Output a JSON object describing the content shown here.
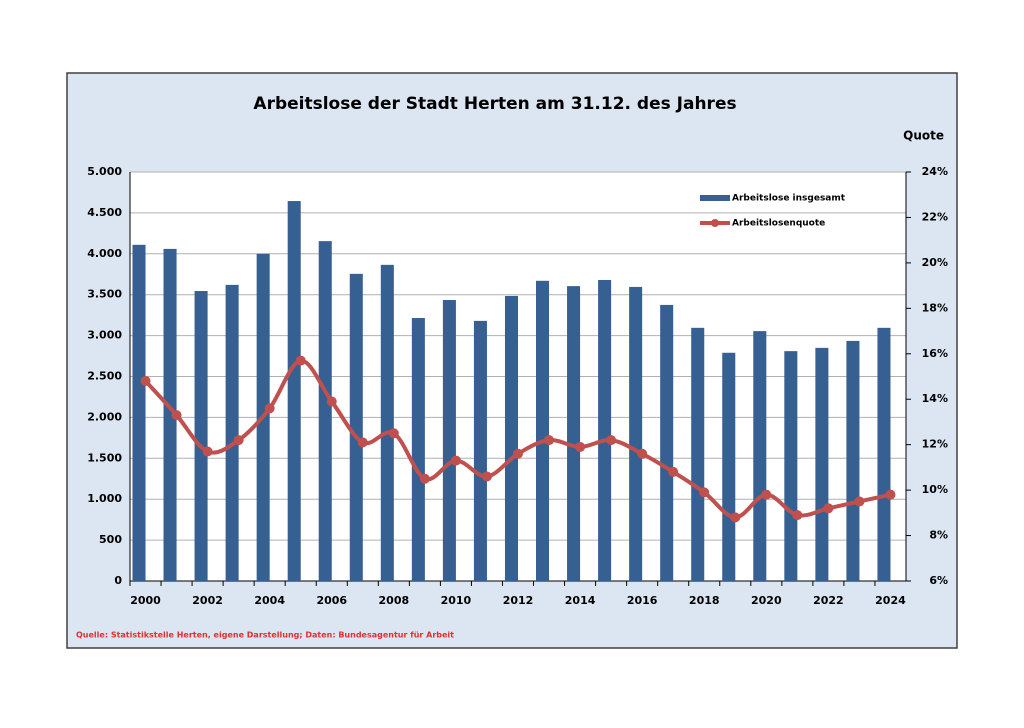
{
  "chart_data": {
    "type": "bar_line",
    "title": "Arbeitslose der Stadt Herten am 31.12. des Jahres",
    "y2_label": "Quote",
    "source": "Quelle: Statistikstelle Herten, eigene Darstellung; Daten: Bundesagentur für Arbeit",
    "categories": [
      "2000",
      null,
      "2002",
      null,
      "2004",
      null,
      "2006",
      null,
      "2008",
      null,
      "2010",
      null,
      "2012",
      null,
      "2014",
      null,
      "2016",
      null,
      "2018",
      null,
      "2020",
      null,
      "2022",
      null,
      "2024"
    ],
    "series": [
      {
        "name": "Arbeitslose insgesamt",
        "type": "bar",
        "color": "#376092",
        "values": [
          4110,
          4060,
          3545,
          3620,
          4000,
          4645,
          4155,
          3755,
          3865,
          3215,
          3435,
          3180,
          3485,
          3670,
          3605,
          3680,
          3595,
          3375,
          3095,
          2790,
          3055,
          2810,
          2850,
          2935,
          3095
        ]
      },
      {
        "name": "Arbeitslosenquote",
        "type": "line",
        "axis": "y2",
        "color": "#c0504d",
        "values": [
          14.8,
          13.3,
          11.7,
          12.2,
          13.6,
          15.7,
          13.9,
          12.1,
          12.5,
          10.5,
          11.3,
          10.6,
          11.6,
          12.2,
          11.9,
          12.2,
          11.6,
          10.8,
          9.9,
          8.8,
          9.8,
          8.9,
          9.2,
          9.5,
          9.8
        ]
      }
    ],
    "ylim": [
      0,
      5000
    ],
    "yticks": [
      0,
      500,
      {
        "value": 1000,
        "label": "1.000"
      },
      {
        "value": 1500,
        "label": "1.500"
      },
      {
        "value": 2000,
        "label": "2.000"
      },
      {
        "value": 2500,
        "label": "2.500"
      },
      {
        "value": 3000,
        "label": "3.000"
      },
      {
        "value": 3500,
        "label": "3.500"
      },
      {
        "value": 4000,
        "label": "4.000"
      },
      {
        "value": 4500,
        "label": "4.500"
      },
      {
        "value": 5000,
        "label": "5.000"
      }
    ],
    "y2lim": [
      6,
      24
    ],
    "y2ticks": [
      {
        "value": 6,
        "label": "6%"
      },
      {
        "value": 8,
        "label": "8%"
      },
      {
        "value": 10,
        "label": "10%"
      },
      {
        "value": 12,
        "label": "12%"
      },
      {
        "value": 14,
        "label": "14%"
      },
      {
        "value": 16,
        "label": "16%"
      },
      {
        "value": 18,
        "label": "18%"
      },
      {
        "value": 20,
        "label": "20%"
      },
      {
        "value": 22,
        "label": "22%"
      },
      {
        "value": 24,
        "label": "24%"
      }
    ],
    "grid": true
  }
}
